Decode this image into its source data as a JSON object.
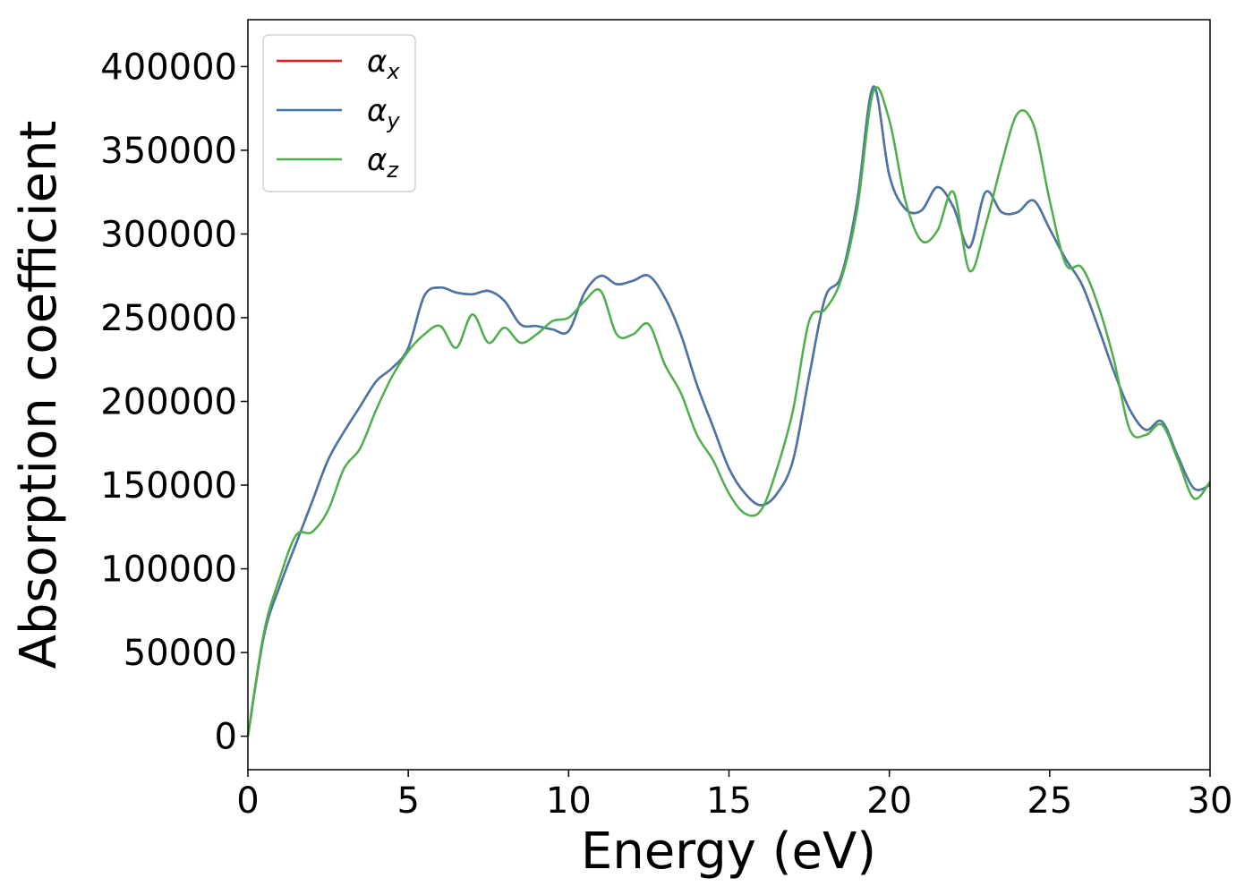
{
  "chart_data": {
    "type": "line",
    "title": "",
    "xlabel": "Energy (eV)",
    "ylabel": "Absorption coefficient",
    "xlim": [
      0,
      30
    ],
    "ylim": [
      -20000,
      428000
    ],
    "xticks": [
      "0",
      "5",
      "10",
      "15",
      "20",
      "25",
      "30"
    ],
    "yticks": [
      "0",
      "50000",
      "100000",
      "150000",
      "200000",
      "250000",
      "300000",
      "350000",
      "400000"
    ],
    "grid": false,
    "legend_position": "top-left",
    "legend": [
      {
        "base": "α",
        "sub": "x"
      },
      {
        "base": "α",
        "sub": "y"
      },
      {
        "base": "α",
        "sub": "z"
      }
    ],
    "x": [
      0,
      0.5,
      1,
      1.5,
      2,
      2.5,
      3,
      3.5,
      4,
      4.5,
      5,
      5.5,
      6,
      6.5,
      7,
      7.5,
      8,
      8.5,
      9,
      9.5,
      10,
      10.5,
      11,
      11.5,
      12,
      12.5,
      13,
      13.5,
      14,
      14.5,
      15,
      15.5,
      16,
      16.5,
      17,
      17.5,
      18,
      18.5,
      19,
      19.5,
      20,
      20.5,
      21,
      21.5,
      22,
      22.5,
      23,
      23.5,
      24,
      24.5,
      25,
      25.5,
      26,
      26.5,
      27,
      27.5,
      28,
      28.5,
      29,
      29.5,
      30
    ],
    "series": [
      {
        "name": "α_x",
        "color": "#e41a1c",
        "values": [
          0,
          60000,
          90000,
          115000,
          140000,
          165000,
          182000,
          197000,
          212000,
          220000,
          232000,
          263000,
          268000,
          265000,
          264000,
          266000,
          260000,
          246000,
          245000,
          243000,
          242000,
          265000,
          275000,
          270000,
          272000,
          275000,
          262000,
          240000,
          210000,
          185000,
          160000,
          145000,
          138000,
          145000,
          165000,
          215000,
          262000,
          275000,
          320000,
          388000,
          335000,
          315000,
          314000,
          328000,
          316000,
          292000,
          325000,
          313000,
          313000,
          320000,
          303000,
          285000,
          270000,
          245000,
          218000,
          195000,
          183000,
          188000,
          167000,
          148000,
          150000
        ]
      },
      {
        "name": "α_y",
        "color": "#4677aa",
        "values": [
          0,
          60000,
          90000,
          115000,
          140000,
          165000,
          182000,
          197000,
          212000,
          220000,
          232000,
          263000,
          268000,
          265000,
          264000,
          266000,
          260000,
          246000,
          245000,
          243000,
          242000,
          265000,
          275000,
          270000,
          272000,
          275000,
          262000,
          240000,
          210000,
          185000,
          160000,
          145000,
          138000,
          145000,
          165000,
          215000,
          262000,
          275000,
          320000,
          388000,
          335000,
          315000,
          314000,
          328000,
          316000,
          292000,
          325000,
          313000,
          313000,
          320000,
          303000,
          285000,
          270000,
          245000,
          218000,
          195000,
          183000,
          188000,
          167000,
          148000,
          150000
        ]
      },
      {
        "name": "α_z",
        "color": "#4daf4a",
        "values": [
          0,
          62000,
          95000,
          120000,
          122000,
          135000,
          160000,
          172000,
          195000,
          215000,
          230000,
          240000,
          245000,
          232000,
          252000,
          235000,
          244000,
          235000,
          240000,
          248000,
          250000,
          260000,
          266000,
          240000,
          240000,
          246000,
          222000,
          205000,
          180000,
          165000,
          145000,
          133000,
          135000,
          160000,
          195000,
          248000,
          255000,
          273000,
          315000,
          385000,
          368000,
          320000,
          296000,
          302000,
          325000,
          278000,
          305000,
          342000,
          372000,
          365000,
          320000,
          282000,
          280000,
          258000,
          225000,
          183000,
          180000,
          186000,
          165000,
          142000,
          152000
        ]
      }
    ]
  }
}
